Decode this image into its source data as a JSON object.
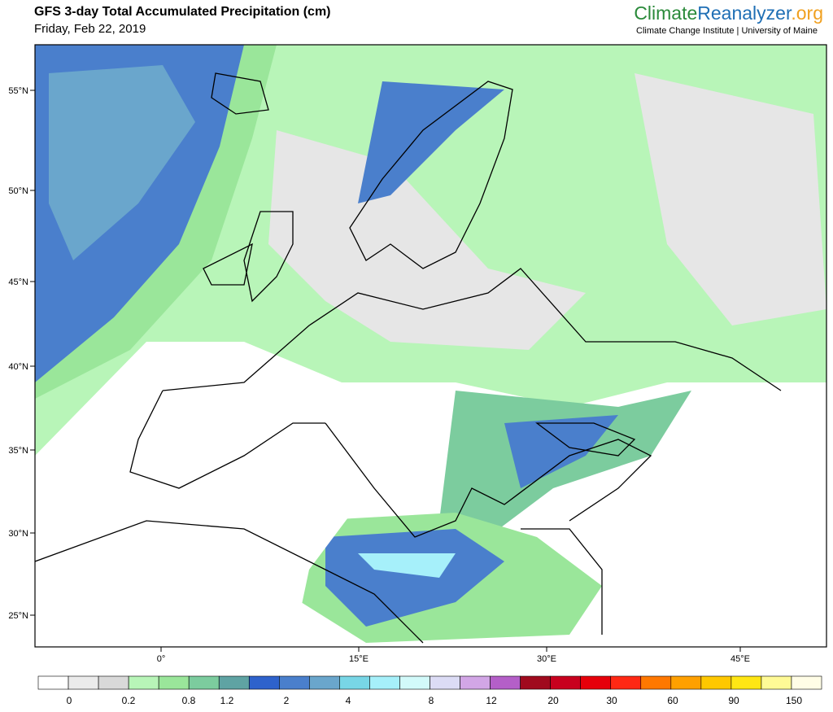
{
  "header": {
    "title": "GFS 3-day Total Accumulated Precipitation (cm)",
    "subtitle": "Friday, Feb 22, 2019"
  },
  "brand": {
    "part1": "Climate",
    "part2": "Reanalyzer",
    "part3": ".org",
    "subtitle": "Climate Change Institute | University of Maine"
  },
  "map": {
    "lat_labels": [
      "55°N",
      "50°N",
      "45°N",
      "40°N",
      "35°N",
      "30°N",
      "25°N"
    ],
    "lon_labels": [
      "0°",
      "15°E",
      "30°E",
      "45°E"
    ]
  },
  "colorbar": {
    "labels": [
      "0",
      "0.2",
      "0.8",
      "1.2",
      "2",
      "4",
      "8",
      "12",
      "20",
      "30",
      "60",
      "90",
      "150"
    ],
    "colors": [
      "#ffffff",
      "#ebebeb",
      "#d9d9d9",
      "#b8f5b8",
      "#9ae69a",
      "#7ccc9e",
      "#5fa3a3",
      "#2e62cc",
      "#4a7fcc",
      "#6aa6cc",
      "#78d6e6",
      "#a6f0fa",
      "#d2fafa",
      "#dcdcf5",
      "#d2a6e6",
      "#b45fc8",
      "#a00a1e",
      "#c8001e",
      "#e6000a",
      "#ff2814",
      "#ff7800",
      "#ffa000",
      "#ffc800",
      "#ffe614",
      "#fffa96",
      "#fffde6"
    ]
  }
}
